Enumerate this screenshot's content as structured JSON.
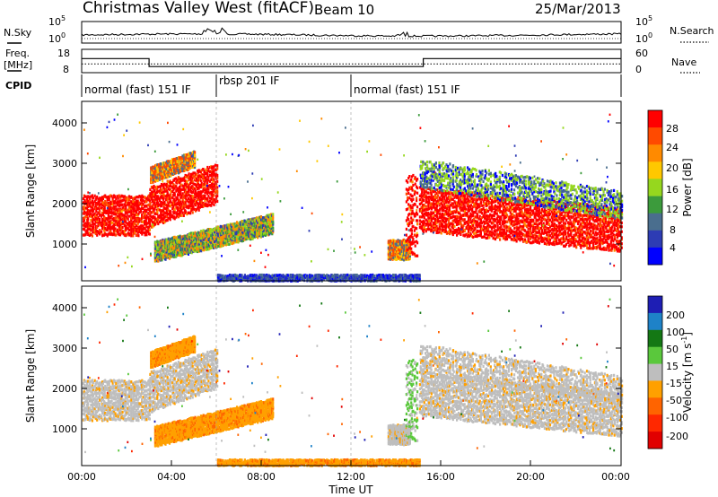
{
  "header": {
    "station": "Christmas Valley West (fitACF)",
    "beam": "Beam 10",
    "date": "25/Mar/2013"
  },
  "top_panel": {
    "left_label": "N.Sky",
    "right_label": "N.Search",
    "left_ticks": [
      "10^5",
      "10^0"
    ],
    "right_ticks": [
      "10^5",
      "10^0"
    ]
  },
  "freq_panel": {
    "left_label_1": "Freq.",
    "left_label_2": "[MHz]",
    "right_label": "Nave",
    "left_ticks": [
      "18",
      "8"
    ],
    "right_ticks": [
      "60",
      "0"
    ],
    "freq_mhz": {
      "x_hours": [
        0,
        3,
        3,
        15.2,
        15.2,
        24
      ],
      "values": [
        14.5,
        14.5,
        10.3,
        10.3,
        14.5,
        14.5
      ]
    },
    "nave": {
      "x_hours": [
        0,
        24
      ],
      "values": [
        22,
        22
      ]
    }
  },
  "cpid": {
    "label": "CPID",
    "segments": [
      {
        "start_hour": 0,
        "end_hour": 6,
        "text": "normal (fast) 151 IF"
      },
      {
        "start_hour": 6,
        "end_hour": 12,
        "text": "rbsp 201 IF"
      },
      {
        "start_hour": 12,
        "end_hour": 24,
        "text": "normal (fast) 151 IF"
      }
    ]
  },
  "chart_data": [
    {
      "type": "heatmap",
      "ylabel": "Slant Range [km]",
      "xlim_hours": [
        0,
        24
      ],
      "ylim_km": [
        150,
        4600
      ],
      "y_ticks": [
        "1000",
        "2000",
        "3000",
        "4000"
      ],
      "colorbar": {
        "label": "Power [dB]",
        "ticks": [
          "28",
          "24",
          "20",
          "16",
          "12",
          "8",
          "4"
        ],
        "colors": [
          "#ff0000",
          "#ff4a00",
          "#ff8a00",
          "#ffc800",
          "#96d71e",
          "#3c9b3c",
          "#4a6e8e",
          "#2d3cb4",
          "#0000ff"
        ]
      }
    },
    {
      "type": "heatmap",
      "xlabel": "Time UT",
      "ylabel": "Slant Range [km]",
      "xlim_hours": [
        0,
        24
      ],
      "ylim_km": [
        150,
        4600
      ],
      "y_ticks": [
        "1000",
        "2000",
        "3000",
        "4000"
      ],
      "x_ticks": [
        "00:00",
        "04:00",
        "08:00",
        "12:00",
        "16:00",
        "20:00",
        "00:00"
      ],
      "colorbar": {
        "label": "Velocity [m s^-1]",
        "ticks": [
          "200",
          "100",
          "50",
          "15",
          "-15",
          "-50",
          "-100",
          "-200"
        ],
        "colors": [
          "#1e1eb4",
          "#1e82c8",
          "#147814",
          "#5ac83c",
          "#bebebe",
          "#ffa000",
          "#ff6400",
          "#ff2800",
          "#e10000"
        ]
      }
    }
  ]
}
